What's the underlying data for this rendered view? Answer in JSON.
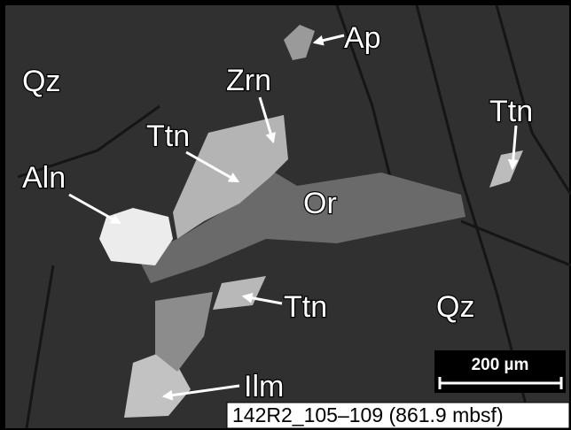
{
  "image": {
    "labels": [
      "Ap",
      "Qz",
      "Zrn",
      "Ttn",
      "Ttn",
      "Aln",
      "Or",
      "Ttn",
      "Qz",
      "Ilm"
    ],
    "scale_bar": "200 µm",
    "caption": "142R2_105–109 (861.9 mbsf)"
  }
}
